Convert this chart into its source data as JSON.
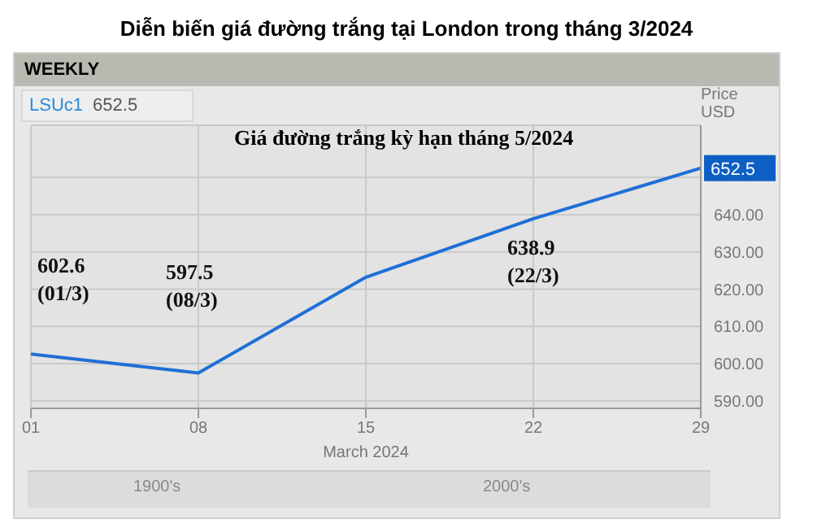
{
  "chart_data": {
    "type": "line",
    "title": "Diễn biến giá đường trắng tại London trong tháng 3/2024",
    "subtitle": "Giá đường trắng kỳ hạn tháng 5/2024",
    "xlabel": "March 2024",
    "ylabel": "Price USD",
    "x": [
      1,
      8,
      15,
      22,
      29
    ],
    "series": [
      {
        "color": "#1f6fd6",
        "values": [
          602.6,
          597.5,
          623.2,
          638.9,
          652.5
        ]
      }
    ],
    "xlim": [
      1,
      29
    ],
    "xticks": [
      {
        "value": 1,
        "label": "01"
      },
      {
        "value": 8,
        "label": "08"
      },
      {
        "value": 15,
        "label": "15"
      },
      {
        "value": 22,
        "label": "22"
      },
      {
        "value": 29,
        "label": "29"
      }
    ],
    "ylim": [
      588,
      664
    ],
    "yticks": [
      {
        "value": 590,
        "label": "590.00"
      },
      {
        "value": 600,
        "label": "600.00"
      },
      {
        "value": 610,
        "label": "610.00"
      },
      {
        "value": 620,
        "label": "620.00"
      },
      {
        "value": 630,
        "label": "630.00"
      },
      {
        "value": 640,
        "label": "640.00"
      },
      {
        "value": 650,
        "label": null
      }
    ],
    "grid": true,
    "marker": "none",
    "legend": false,
    "annotations": [
      "WEEKLY",
      "LSUc1 652.5",
      "1900's",
      "2000's",
      {
        "text": "602.6 (01/3)",
        "x": 1,
        "y": 602.6
      },
      {
        "text": "597.5 (08/3)",
        "x": 8,
        "y": 597.5
      },
      {
        "text": "638.9 (22/3)",
        "x": 22,
        "y": 638.9
      },
      {
        "text": "652.5",
        "x": 29,
        "y": 652.5
      }
    ]
  }
}
